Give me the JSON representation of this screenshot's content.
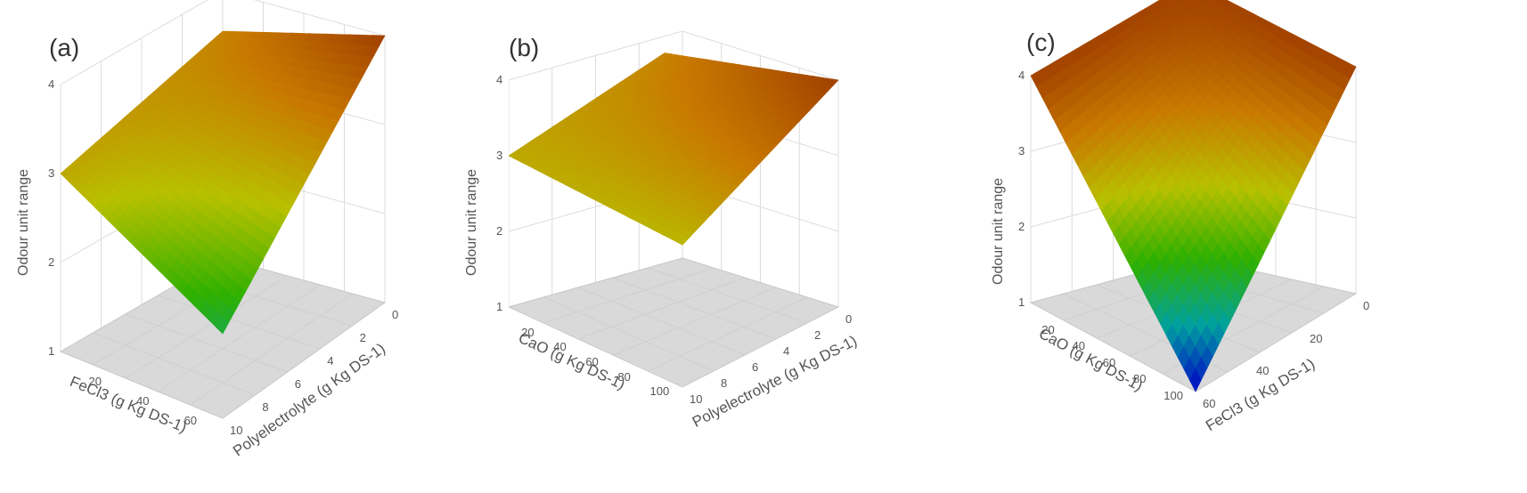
{
  "chart_data": [
    {
      "type": "surface3d",
      "panel_label": "(a)",
      "zlabel": "Odour unit range",
      "z_ticks": [
        "1",
        "2",
        "3",
        "4"
      ],
      "zlim": [
        1,
        4
      ],
      "left_axis": {
        "label": "FeCl3 (g Kg DS-1)",
        "ticks": [
          "20",
          "40",
          "60"
        ]
      },
      "right_axis": {
        "label": "Polyelectrolyte (g Kg DS-1)",
        "ticks": [
          "10",
          "8",
          "6",
          "4",
          "2",
          "0"
        ]
      },
      "corner_z": {
        "left": 3.0,
        "front": 1.95,
        "right": 4.0,
        "back": 3.3
      },
      "colormap": [
        "#0000c8",
        "#00a0a0",
        "#2eb000",
        "#b8c000",
        "#c87800",
        "#a04000"
      ]
    },
    {
      "type": "surface3d",
      "panel_label": "(b)",
      "zlabel": "Odour unit range",
      "z_ticks": [
        "1",
        "2",
        "3",
        "4"
      ],
      "zlim": [
        1,
        4
      ],
      "left_axis": {
        "label": "CaO (g Kg DS-1)",
        "ticks": [
          "20",
          "40",
          "60",
          "80",
          "100"
        ]
      },
      "right_axis": {
        "label": "Polyelectrolyte (g Kg DS-1)",
        "ticks": [
          "10",
          "8",
          "6",
          "4",
          "2",
          "0"
        ]
      },
      "corner_z": {
        "left": 3.0,
        "front": 2.88,
        "right": 4.0,
        "back": 3.3
      },
      "colormap": [
        "#0000c8",
        "#00a0a0",
        "#2eb000",
        "#b8c000",
        "#c87800",
        "#a04000"
      ]
    },
    {
      "type": "surface3d",
      "panel_label": "(c)",
      "zlabel": "Odour unit range",
      "z_ticks": [
        "1",
        "2",
        "3",
        "4"
      ],
      "zlim": [
        1,
        4
      ],
      "left_axis": {
        "label": "CaO (g Kg DS-1)",
        "ticks": [
          "20",
          "40",
          "60",
          "80",
          "100"
        ]
      },
      "right_axis": {
        "label": "FeCl3 (g Kg DS-1)",
        "ticks": [
          "60",
          "40",
          "20",
          "0"
        ]
      },
      "corner_z": {
        "left": 4.0,
        "front": 1.0,
        "right": 4.0,
        "back": 3.95
      },
      "colormap": [
        "#0000c8",
        "#00a0a0",
        "#2eb000",
        "#b8c000",
        "#c87800",
        "#a04000"
      ]
    }
  ]
}
